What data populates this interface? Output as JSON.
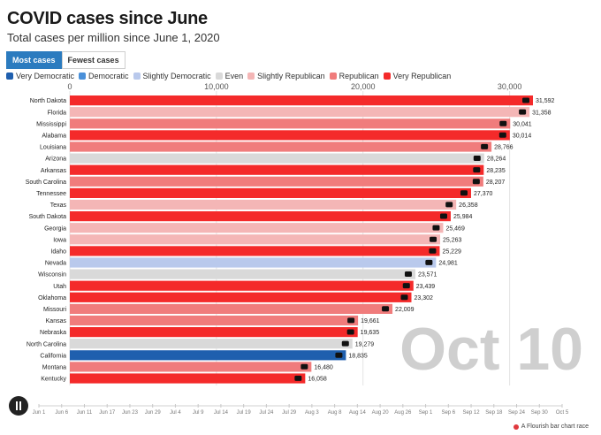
{
  "header": {
    "title": "COVID cases since June",
    "subtitle": "Total cases per million since June 1, 2020"
  },
  "buttons": [
    {
      "label": "Most cases",
      "active": true
    },
    {
      "label": "Fewest cases",
      "active": false
    }
  ],
  "legend": [
    {
      "label": "Very Democratic",
      "color": "#1f5fae"
    },
    {
      "label": "Democratic",
      "color": "#4a90d9"
    },
    {
      "label": "Slightly Democratic",
      "color": "#b9c9ec"
    },
    {
      "label": "Even",
      "color": "#d9d9d9"
    },
    {
      "label": "Slightly Republican",
      "color": "#f4b6b6"
    },
    {
      "label": "Republican",
      "color": "#f07c7c"
    },
    {
      "label": "Very Republican",
      "color": "#f42a2a"
    }
  ],
  "date_label": "Oct 10",
  "timeline": [
    "Jun 1",
    "Jun 6",
    "Jun 11",
    "Jun 17",
    "Jun 23",
    "Jun 29",
    "Jul 4",
    "Jul 9",
    "Jul 14",
    "Jul 19",
    "Jul 24",
    "Jul 29",
    "Aug 3",
    "Aug 8",
    "Aug 14",
    "Aug 20",
    "Aug 26",
    "Sep 1",
    "Sep 6",
    "Sep 12",
    "Sep 18",
    "Sep 24",
    "Sep 30",
    "Oct 5"
  ],
  "credit": "A Flourish bar chart race",
  "chart_data": {
    "type": "bar",
    "orientation": "horizontal",
    "xlim": [
      0,
      31592
    ],
    "xticks": [
      0,
      10000,
      20000,
      30000
    ],
    "xtick_labels": [
      "0",
      "10,000",
      "20,000",
      "30,000"
    ],
    "grid": true,
    "categories": [
      "North Dakota",
      "Florida",
      "Mississippi",
      "Alabama",
      "Louisiana",
      "Arizona",
      "Arkansas",
      "South Carolina",
      "Tennessee",
      "Texas",
      "South Dakota",
      "Georgia",
      "Iowa",
      "Idaho",
      "Nevada",
      "Wisconsin",
      "Utah",
      "Oklahoma",
      "Missouri",
      "Kansas",
      "Nebraska",
      "North Carolina",
      "California",
      "Montana",
      "Kentucky"
    ],
    "values": [
      31592,
      31358,
      30041,
      30014,
      28766,
      28264,
      28235,
      28207,
      27370,
      26358,
      25984,
      25469,
      25263,
      25229,
      24981,
      23571,
      23439,
      23302,
      22009,
      19661,
      19635,
      19279,
      18835,
      16480,
      16058
    ],
    "value_labels": [
      "31,592",
      "31,358",
      "30,041",
      "30,014",
      "28,766",
      "28,264",
      "28,235",
      "28,207",
      "27,370",
      "26,358",
      "25,984",
      "25,469",
      "25,263",
      "25,229",
      "24,981",
      "23,571",
      "23,439",
      "23,302",
      "22,009",
      "19,661",
      "19,635",
      "19,279",
      "18,835",
      "16,480",
      "16,058"
    ],
    "groups": [
      "Very Republican",
      "Slightly Republican",
      "Republican",
      "Very Republican",
      "Republican",
      "Even",
      "Very Republican",
      "Republican",
      "Very Republican",
      "Slightly Republican",
      "Very Republican",
      "Slightly Republican",
      "Slightly Republican",
      "Very Republican",
      "Slightly Democratic",
      "Even",
      "Very Republican",
      "Very Republican",
      "Republican",
      "Republican",
      "Very Republican",
      "Even",
      "Very Democratic",
      "Republican",
      "Very Republican"
    ]
  }
}
